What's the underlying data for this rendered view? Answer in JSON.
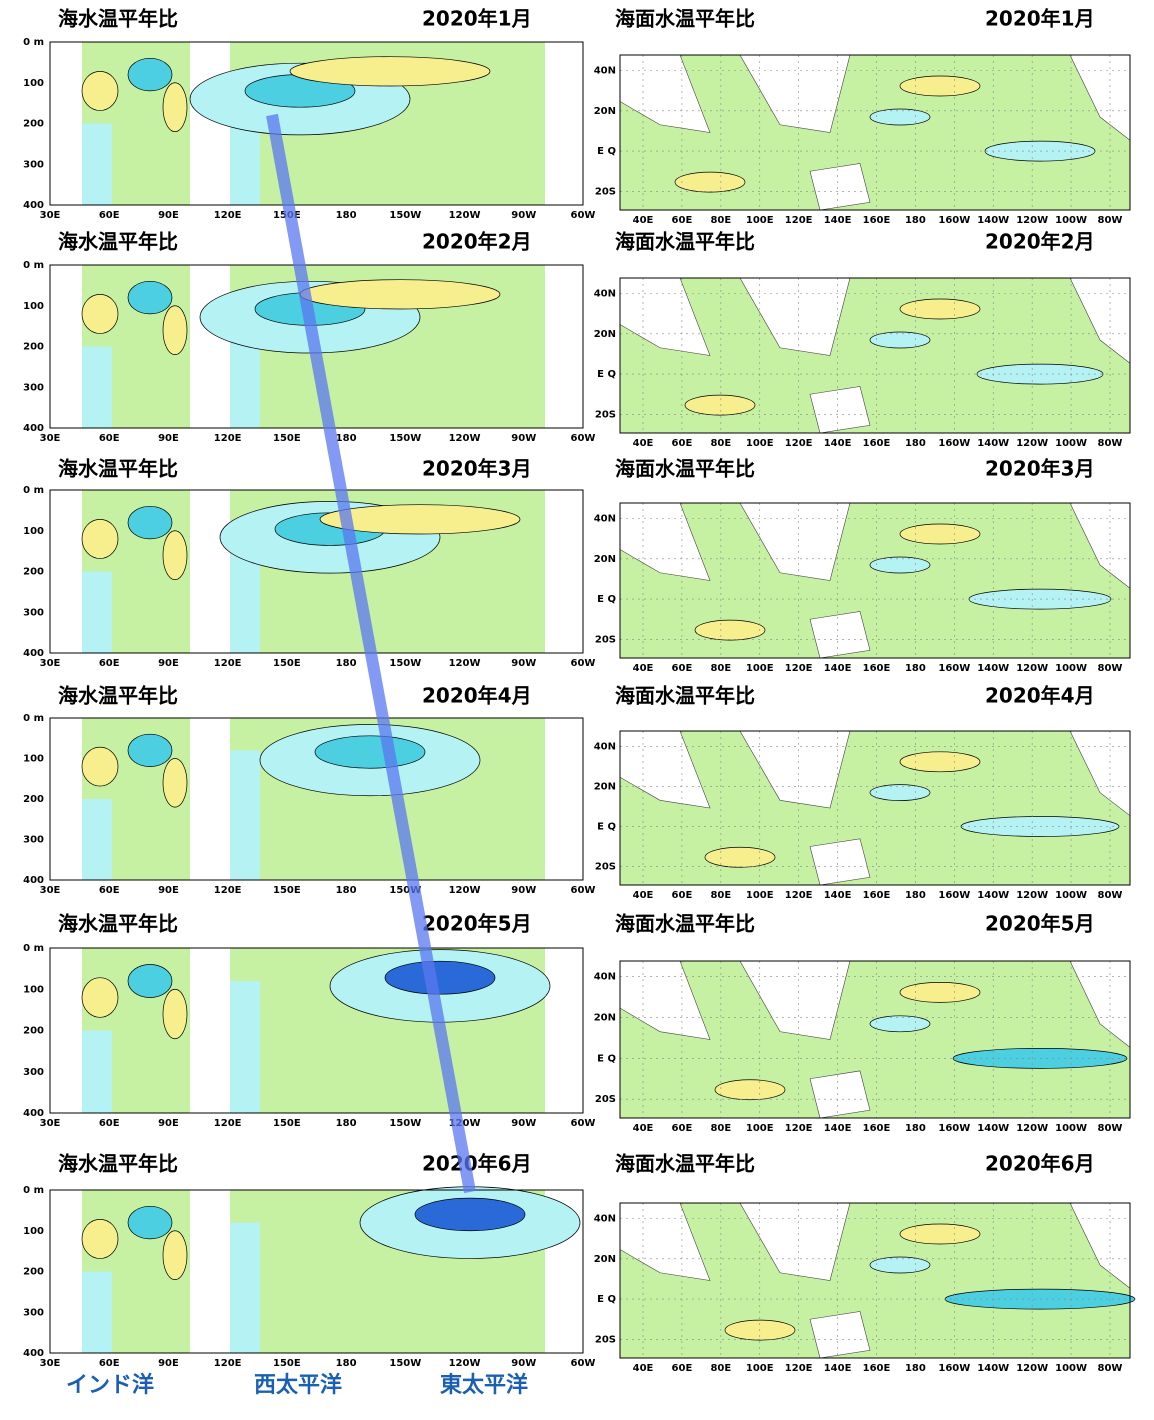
{
  "left_panels": [
    {
      "title": "海水温平年比",
      "date": "2020年1月"
    },
    {
      "title": "海水温平年比",
      "date": "2020年2月"
    },
    {
      "title": "海水温平年比",
      "date": "2020年3月"
    },
    {
      "title": "海水温平年比",
      "date": "2020年4月"
    },
    {
      "title": "海水温平年比",
      "date": "2020年5月"
    },
    {
      "title": "海水温平年比",
      "date": "2020年6月"
    }
  ],
  "right_panels": [
    {
      "title": "海面水温平年比",
      "date": "2020年1月"
    },
    {
      "title": "海面水温平年比",
      "date": "2020年2月"
    },
    {
      "title": "海面水温平年比",
      "date": "2020年3月"
    },
    {
      "title": "海面水温平年比",
      "date": "2020年4月"
    },
    {
      "title": "海面水温平年比",
      "date": "2020年5月"
    },
    {
      "title": "海面水温平年比",
      "date": "2020年6月"
    }
  ],
  "left_axes": {
    "x_ticks": [
      "30E",
      "60E",
      "90E",
      "120E",
      "150E",
      "180",
      "150W",
      "120W",
      "90W",
      "60W"
    ],
    "y_ticks": [
      "0 m",
      "100",
      "200",
      "300",
      "400"
    ]
  },
  "right_axes": {
    "x_ticks": [
      "40E",
      "60E",
      "80E",
      "100E",
      "120E",
      "140E",
      "160E",
      "180",
      "160W",
      "140W",
      "120W",
      "100W",
      "80W"
    ],
    "y_ticks": [
      "40N",
      "20N",
      "E Q",
      "20S"
    ]
  },
  "regions": [
    "インド洋",
    "西太平洋",
    "東太平洋"
  ]
}
